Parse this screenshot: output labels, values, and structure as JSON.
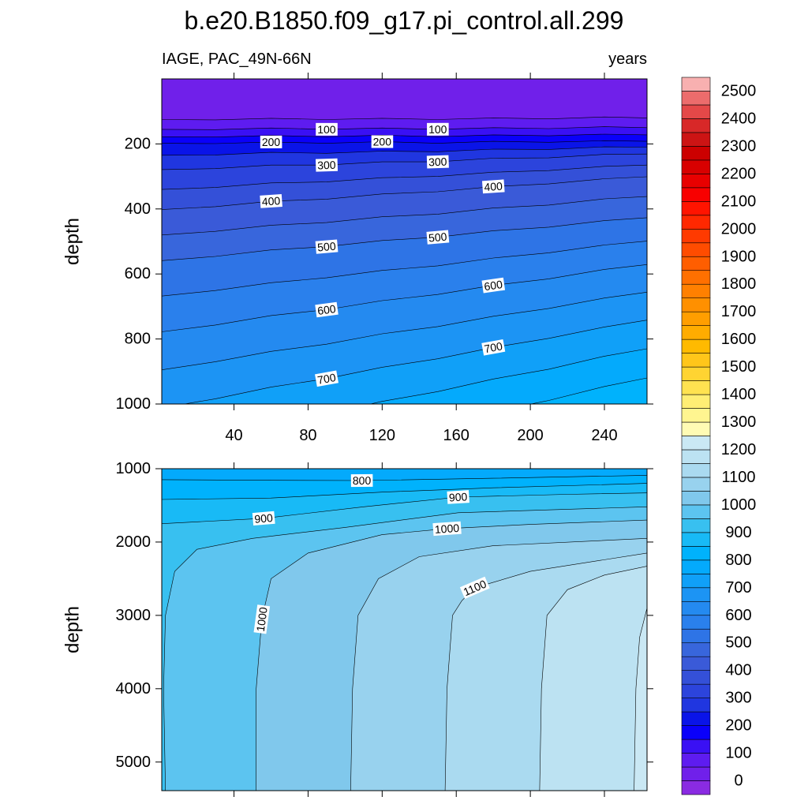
{
  "chart_data": [
    {
      "type": "contour",
      "title": "b.e20.B1850.f09_g17.pi_control.all.299",
      "subtitle_left": "IAGE, PAC_49N-66N",
      "subtitle_right": "years",
      "ylabel": "depth",
      "xlim": [
        1,
        263
      ],
      "ylim": [
        0,
        1000
      ],
      "y_reversed": true,
      "xticks": [
        40,
        80,
        120,
        160,
        200,
        240
      ],
      "yticks": [
        200,
        400,
        600,
        800,
        1000
      ],
      "xtick_labels": true,
      "contours": [
        {
          "level": 50,
          "x": [
            1,
            30,
            60,
            90,
            120,
            150,
            180,
            210,
            240,
            263
          ],
          "y": [
            125,
            126,
            121,
            125,
            121,
            125,
            120,
            123,
            117,
            120
          ]
        },
        {
          "level": 100,
          "x": [
            1,
            30,
            60,
            90,
            120,
            150,
            180,
            210,
            240,
            263
          ],
          "y": [
            155,
            156,
            151,
            155,
            151,
            155,
            150,
            153,
            147,
            150
          ]
        },
        {
          "level": 150,
          "x": [
            1,
            30,
            60,
            90,
            120,
            150,
            180,
            210,
            240,
            263
          ],
          "y": [
            178,
            179,
            174,
            178,
            173,
            178,
            172,
            175,
            170,
            172
          ]
        },
        {
          "level": 200,
          "x": [
            1,
            30,
            60,
            90,
            120,
            150,
            180,
            210,
            240,
            263
          ],
          "y": [
            198,
            199,
            194,
            198,
            193,
            198,
            192,
            195,
            190,
            192
          ]
        },
        {
          "level": 250,
          "x": [
            1,
            30,
            60,
            90,
            120,
            150,
            180,
            210,
            240,
            263
          ],
          "y": [
            235,
            234,
            226,
            229,
            222,
            224,
            216,
            217,
            209,
            210
          ]
        },
        {
          "level": 300,
          "x": [
            1,
            30,
            60,
            90,
            120,
            150,
            180,
            210,
            240,
            263
          ],
          "y": [
            279,
            276,
            265,
            265,
            255,
            255,
            244,
            243,
            232,
            231
          ]
        },
        {
          "level": 350,
          "x": [
            1,
            30,
            60,
            90,
            120,
            150,
            180,
            210,
            240,
            263
          ],
          "y": [
            340,
            334,
            320,
            317,
            304,
            300,
            287,
            282,
            269,
            265
          ]
        },
        {
          "level": 400,
          "x": [
            1,
            30,
            60,
            90,
            120,
            150,
            180,
            210,
            240,
            263
          ],
          "y": [
            402,
            393,
            376,
            370,
            354,
            347,
            331,
            323,
            307,
            301
          ]
        },
        {
          "level": 450,
          "x": [
            1,
            30,
            60,
            90,
            120,
            150,
            180,
            210,
            240,
            263
          ],
          "y": [
            480,
            469,
            450,
            442,
            424,
            416,
            397,
            388,
            369,
            362
          ]
        },
        {
          "level": 500,
          "x": [
            1,
            30,
            60,
            90,
            120,
            150,
            180,
            210,
            240,
            263
          ],
          "y": [
            559,
            546,
            526,
            516,
            497,
            487,
            467,
            456,
            436,
            427
          ]
        },
        {
          "level": 550,
          "x": [
            1,
            30,
            60,
            90,
            120,
            150,
            180,
            210,
            240,
            263
          ],
          "y": [
            668,
            651,
            627,
            612,
            589,
            575,
            551,
            535,
            511,
            499
          ]
        },
        {
          "level": 600,
          "x": [
            1,
            30,
            60,
            90,
            120,
            150,
            180,
            210,
            240,
            263
          ],
          "y": [
            778,
            757,
            728,
            710,
            682,
            663,
            635,
            615,
            586,
            571
          ]
        },
        {
          "level": 650,
          "x": [
            1,
            30,
            60,
            90,
            120,
            150,
            180,
            210,
            240,
            263
          ],
          "y": [
            895,
            870,
            838,
            816,
            784,
            762,
            730,
            706,
            674,
            656
          ]
        },
        {
          "level": 700,
          "x": [
            1,
            30,
            60,
            90,
            120,
            150,
            180,
            210,
            240,
            263
          ],
          "y": [
            1012,
            984,
            948,
            922,
            887,
            861,
            826,
            798,
            763,
            742
          ]
        },
        {
          "level": 750,
          "x": [
            1,
            30,
            60,
            90,
            120,
            150,
            180,
            210,
            240,
            263
          ],
          "y": [
            1130,
            1099,
            1059,
            1030,
            992,
            962,
            923,
            893,
            853,
            830
          ]
        },
        {
          "level": 800,
          "x": [
            1,
            30,
            60,
            90,
            120,
            150,
            180,
            210,
            240,
            263
          ],
          "y": [
            1250,
            1215,
            1173,
            1140,
            1098,
            1065,
            1023,
            989,
            946,
            920
          ]
        }
      ]
    },
    {
      "type": "contour",
      "ylabel": "depth",
      "xlim": [
        1,
        263
      ],
      "ylim": [
        1000,
        5390
      ],
      "y_reversed": true,
      "xticks": [
        40,
        80,
        120,
        160,
        200,
        240
      ],
      "yticks": [
        1000,
        2000,
        3000,
        4000,
        5000
      ],
      "xtick_labels": false,
      "contours": [
        {
          "level": 800,
          "x": [
            1,
            60,
            109,
            180,
            263
          ],
          "y": [
            1150,
            1158,
            1161,
            1130,
            1090
          ]
        },
        {
          "level": 850,
          "x": [
            1,
            60,
            120,
            180,
            263
          ],
          "y": [
            1420,
            1400,
            1320,
            1260,
            1200
          ]
        },
        {
          "level": 900,
          "x": [
            1,
            56,
            110,
            161,
            220,
            263
          ],
          "y": [
            1750,
            1677,
            1520,
            1387,
            1350,
            1330
          ]
        },
        {
          "level": 950,
          "x": [
            3,
            2,
            3,
            8,
            20,
            50,
            100,
            161,
            263
          ],
          "y": [
            5390,
            4000,
            3000,
            2400,
            2100,
            1950,
            1800,
            1600,
            1520
          ]
        },
        {
          "level": 1000,
          "x": [
            52,
            52,
            55,
            60,
            80,
            120,
            155,
            200,
            263
          ],
          "y": [
            5390,
            4000,
            3054,
            2500,
            2150,
            1900,
            1817,
            1760,
            1700
          ]
        },
        {
          "level": 1050,
          "x": [
            103,
            104,
            107,
            118,
            140,
            180,
            263
          ],
          "y": [
            5390,
            4000,
            3000,
            2500,
            2200,
            2050,
            1950
          ]
        },
        {
          "level": 1100,
          "x": [
            154,
            155,
            158,
            163,
            170,
            200,
            263
          ],
          "y": [
            5390,
            4000,
            3000,
            2800,
            2624,
            2400,
            2150
          ]
        },
        {
          "level": 1150,
          "x": [
            205,
            206,
            209,
            220,
            240,
            263
          ],
          "y": [
            5390,
            4000,
            3000,
            2650,
            2450,
            2330
          ]
        },
        {
          "level": 1200,
          "x": [
            256,
            257,
            259,
            263
          ],
          "y": [
            5390,
            4000,
            3300,
            2900
          ]
        }
      ]
    }
  ],
  "colorbar": {
    "levels": [
      0,
      50,
      100,
      150,
      200,
      250,
      300,
      350,
      400,
      450,
      500,
      550,
      600,
      650,
      700,
      750,
      800,
      850,
      900,
      950,
      1000,
      1050,
      1100,
      1150,
      1200,
      1250,
      1300,
      1350,
      1400,
      1450,
      1500,
      1550,
      1600,
      1650,
      1700,
      1750,
      1800,
      1850,
      1900,
      1950,
      2000,
      2050,
      2100,
      2150,
      2200,
      2250,
      2300,
      2350,
      2400,
      2450,
      2500
    ],
    "ticks": [
      0,
      100,
      200,
      300,
      400,
      500,
      600,
      700,
      800,
      900,
      1000,
      1100,
      1200,
      1300,
      1400,
      1500,
      1600,
      1700,
      1800,
      1900,
      2000,
      2100,
      2200,
      2300,
      2400,
      2500
    ],
    "colors": [
      "#8a2be2",
      "#7020ea",
      "#5e1cf0",
      "#3a10f4",
      "#0a00fa",
      "#0a14e8",
      "#2036e0",
      "#2c44dc",
      "#3450d8",
      "#3a5ad8",
      "#3866dc",
      "#2e74e6",
      "#2a80ec",
      "#248af0",
      "#1c94f4",
      "#10a0f8",
      "#04aafc",
      "#00b2fc",
      "#18baf6",
      "#38c0f0",
      "#5cc4f0",
      "#80c8ec",
      "#98d2ee",
      "#aadaf0",
      "#bce2f2",
      "#cae8f4",
      "#fffbb4",
      "#fff590",
      "#ffee74",
      "#ffe250",
      "#ffd432",
      "#ffc61a",
      "#ffba00",
      "#ffac00",
      "#ff9e00",
      "#ff9000",
      "#ff8000",
      "#ff7000",
      "#ff5e00",
      "#ff4c00",
      "#ff3a00",
      "#ff2800",
      "#ff1400",
      "#f80000",
      "#e80000",
      "#d80000",
      "#cc0000",
      "#cc1414",
      "#d82828",
      "#e44848",
      "#ec6c6c",
      "#f8b0b0"
    ]
  }
}
